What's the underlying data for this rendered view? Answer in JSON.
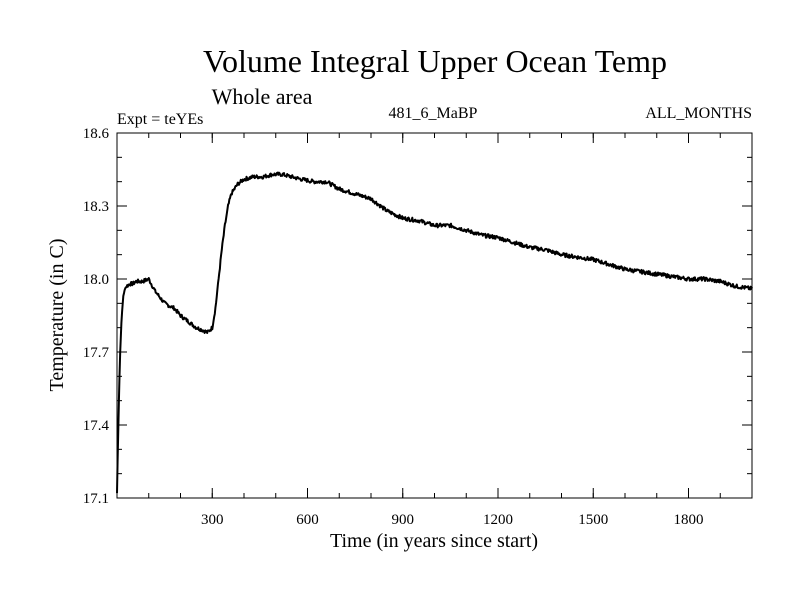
{
  "chart_data": {
    "type": "line",
    "title": "Volume Integral Upper Ocean Temp",
    "subtitle": "Whole area",
    "experiment_label": "Expt = teYEs",
    "run_label": "481_6_MaBP",
    "period_label": "ALL_MONTHS",
    "xlabel": "Time (in years since start)",
    "ylabel": "Temperature (in C)",
    "xlim": [
      0,
      2000
    ],
    "ylim": [
      17.1,
      18.6
    ],
    "xticks": [
      300,
      600,
      900,
      1200,
      1500,
      1800
    ],
    "xtick_labels": [
      "300",
      "600",
      "900",
      "1200",
      "1500",
      "1800"
    ],
    "yticks": [
      17.1,
      17.4,
      17.7,
      18.0,
      18.3,
      18.6
    ],
    "ytick_labels": [
      "17.1",
      "17.4",
      "17.7",
      "18.0",
      "18.3",
      "18.6"
    ],
    "x_minor_step": 100,
    "y_minor_step": 0.1,
    "grid": false,
    "series": [
      {
        "name": "Volume integral upper ocean temperature",
        "color": "#000000",
        "x": [
          0,
          5,
          10,
          15,
          20,
          25,
          30,
          40,
          50,
          60,
          80,
          100,
          120,
          150,
          180,
          200,
          220,
          250,
          270,
          285,
          300,
          310,
          320,
          330,
          340,
          350,
          360,
          380,
          400,
          430,
          460,
          490,
          520,
          550,
          580,
          620,
          660,
          700,
          750,
          800,
          850,
          900,
          950,
          1000,
          1050,
          1100,
          1150,
          1200,
          1250,
          1300,
          1350,
          1400,
          1450,
          1500,
          1550,
          1600,
          1650,
          1700,
          1750,
          1800,
          1850,
          1900,
          1950,
          2000
        ],
        "y": [
          17.12,
          17.45,
          17.7,
          17.85,
          17.93,
          17.96,
          17.97,
          17.98,
          17.98,
          17.99,
          17.99,
          18.0,
          17.95,
          17.9,
          17.88,
          17.85,
          17.83,
          17.8,
          17.79,
          17.78,
          17.8,
          17.88,
          18.0,
          18.12,
          18.22,
          18.3,
          18.35,
          18.39,
          18.41,
          18.42,
          18.42,
          18.43,
          18.43,
          18.42,
          18.41,
          18.4,
          18.4,
          18.37,
          18.35,
          18.33,
          18.28,
          18.25,
          18.24,
          18.22,
          18.22,
          18.2,
          18.18,
          18.17,
          18.15,
          18.13,
          18.12,
          18.1,
          18.09,
          18.08,
          18.06,
          18.04,
          18.03,
          18.02,
          18.01,
          18.0,
          18.0,
          17.99,
          17.97,
          17.96
        ]
      }
    ]
  }
}
